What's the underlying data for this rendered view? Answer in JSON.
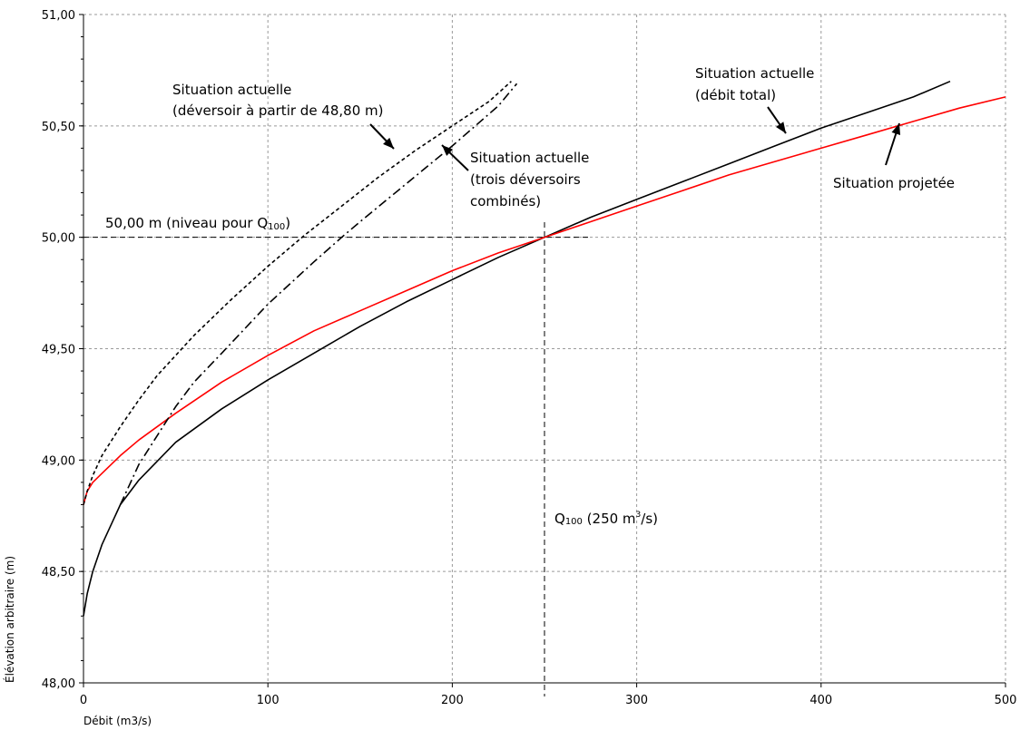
{
  "chart_data": {
    "type": "line",
    "xlabel": "Débit (m3/s)",
    "ylabel": "Élévation arbitraire (m)",
    "xlim": [
      0,
      500
    ],
    "ylim": [
      48.0,
      51.0
    ],
    "x_ticks": [
      0,
      100,
      200,
      300,
      400,
      500
    ],
    "x_tick_labels": [
      "0",
      "100",
      "200",
      "300",
      "400",
      "500"
    ],
    "y_ticks": [
      48.0,
      48.5,
      49.0,
      49.5,
      50.0,
      50.5,
      51.0
    ],
    "y_tick_labels": [
      "48,00",
      "48,50",
      "49,00",
      "49,50",
      "50,00",
      "50,50",
      "51,00"
    ],
    "grid": true,
    "series": [
      {
        "name": "Situation actuelle (débit total)",
        "color": "#000000",
        "style": "solid",
        "x": [
          0,
          2,
          5,
          10,
          20,
          30,
          50,
          75,
          100,
          125,
          150,
          175,
          200,
          225,
          250,
          275,
          300,
          325,
          350,
          375,
          400,
          425,
          450,
          470
        ],
        "y": [
          48.3,
          48.4,
          48.5,
          48.62,
          48.8,
          48.91,
          49.08,
          49.23,
          49.36,
          49.48,
          49.6,
          49.71,
          49.81,
          49.91,
          50.0,
          50.09,
          50.17,
          50.25,
          50.33,
          50.41,
          50.49,
          50.56,
          50.63,
          50.7
        ]
      },
      {
        "name": "Situation projetée",
        "color": "#ff0000",
        "style": "solid",
        "x": [
          0,
          2,
          5,
          10,
          20,
          30,
          50,
          75,
          100,
          125,
          150,
          175,
          200,
          225,
          250,
          275,
          300,
          325,
          350,
          375,
          400,
          425,
          450,
          475,
          500
        ],
        "y": [
          48.8,
          48.86,
          48.9,
          48.94,
          49.02,
          49.09,
          49.21,
          49.35,
          49.47,
          49.58,
          49.67,
          49.76,
          49.85,
          49.93,
          50.0,
          50.07,
          50.14,
          50.21,
          50.28,
          50.34,
          50.4,
          50.46,
          50.52,
          50.58,
          50.63
        ]
      },
      {
        "name": "Situation actuelle (déversoir à partir de 48,80 m)",
        "color": "#000000",
        "style": "dashed",
        "x": [
          0,
          2,
          5,
          10,
          20,
          30,
          40,
          60,
          80,
          100,
          120,
          140,
          160,
          180,
          200,
          220,
          232
        ],
        "y": [
          48.8,
          48.86,
          48.93,
          49.02,
          49.15,
          49.27,
          49.38,
          49.56,
          49.72,
          49.87,
          50.01,
          50.14,
          50.27,
          50.39,
          50.5,
          50.61,
          50.7
        ]
      },
      {
        "name": "Situation actuelle (trois déversoirs combinés)",
        "color": "#000000",
        "style": "dashdot",
        "x": [
          20,
          25,
          30,
          40,
          50,
          60,
          75,
          100,
          125,
          140,
          150,
          175,
          200,
          225,
          235
        ],
        "y": [
          48.8,
          48.89,
          48.98,
          49.11,
          49.24,
          49.35,
          49.48,
          49.7,
          49.89,
          50.0,
          50.07,
          50.24,
          50.41,
          50.59,
          50.69
        ]
      }
    ],
    "reference_lines": [
      {
        "orientation": "horizontal",
        "value": 50.0,
        "x_range": [
          0,
          275
        ],
        "style": "dashed"
      },
      {
        "orientation": "vertical",
        "value": 250,
        "style": "dashed"
      }
    ],
    "annotations": {
      "actuelle_deversoir_1": "Situation actuelle",
      "actuelle_deversoir_2": "(déversoir à partir de 48,80 m)",
      "actuelle_trois_1": "Situation actuelle",
      "actuelle_trois_2": "(trois déversoirs",
      "actuelle_trois_3": "combinés)",
      "actuelle_total_1": "Situation actuelle",
      "actuelle_total_2": "(débit total)",
      "projetee": "Situation projetée",
      "niveau_prefix": "50,00 m (niveau pour Q",
      "niveau_sub": "100",
      "niveau_suffix": ")",
      "q100_prefix": "Q",
      "q100_sub": "100",
      "q100_mid": " (250 m",
      "q100_sup": "3",
      "q100_suffix": "/s)"
    }
  }
}
